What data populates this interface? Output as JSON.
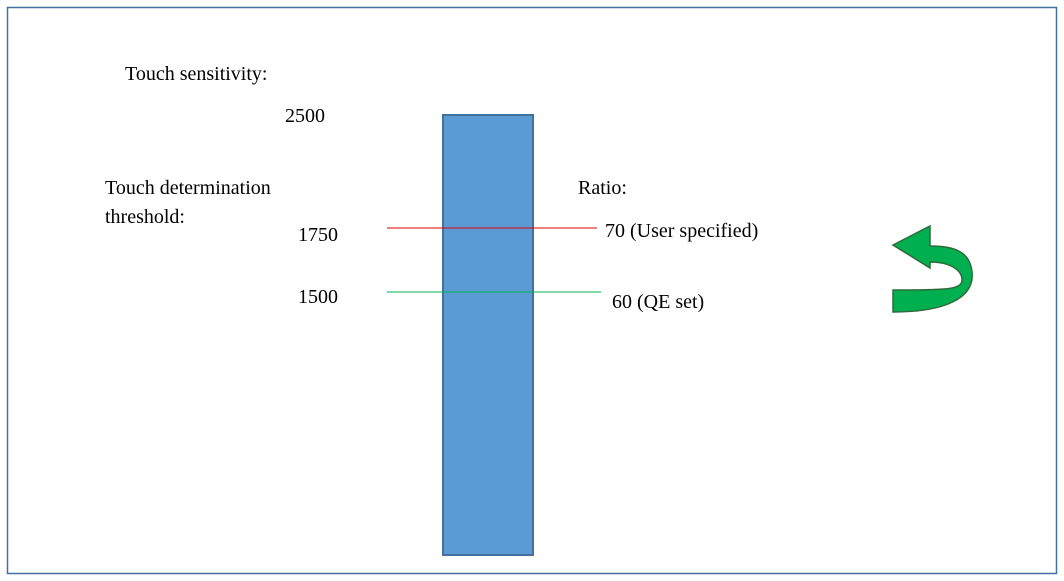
{
  "sensitivity": {
    "label": "Touch sensitivity:",
    "max": "2500"
  },
  "threshold": {
    "label_line1": "Touch determination",
    "label_line2": "threshold:",
    "user_value": "1750",
    "qe_value": "1500"
  },
  "ratio": {
    "label": "Ratio:",
    "user": "70 (User specified)",
    "qe": "60 (QE set)"
  }
}
